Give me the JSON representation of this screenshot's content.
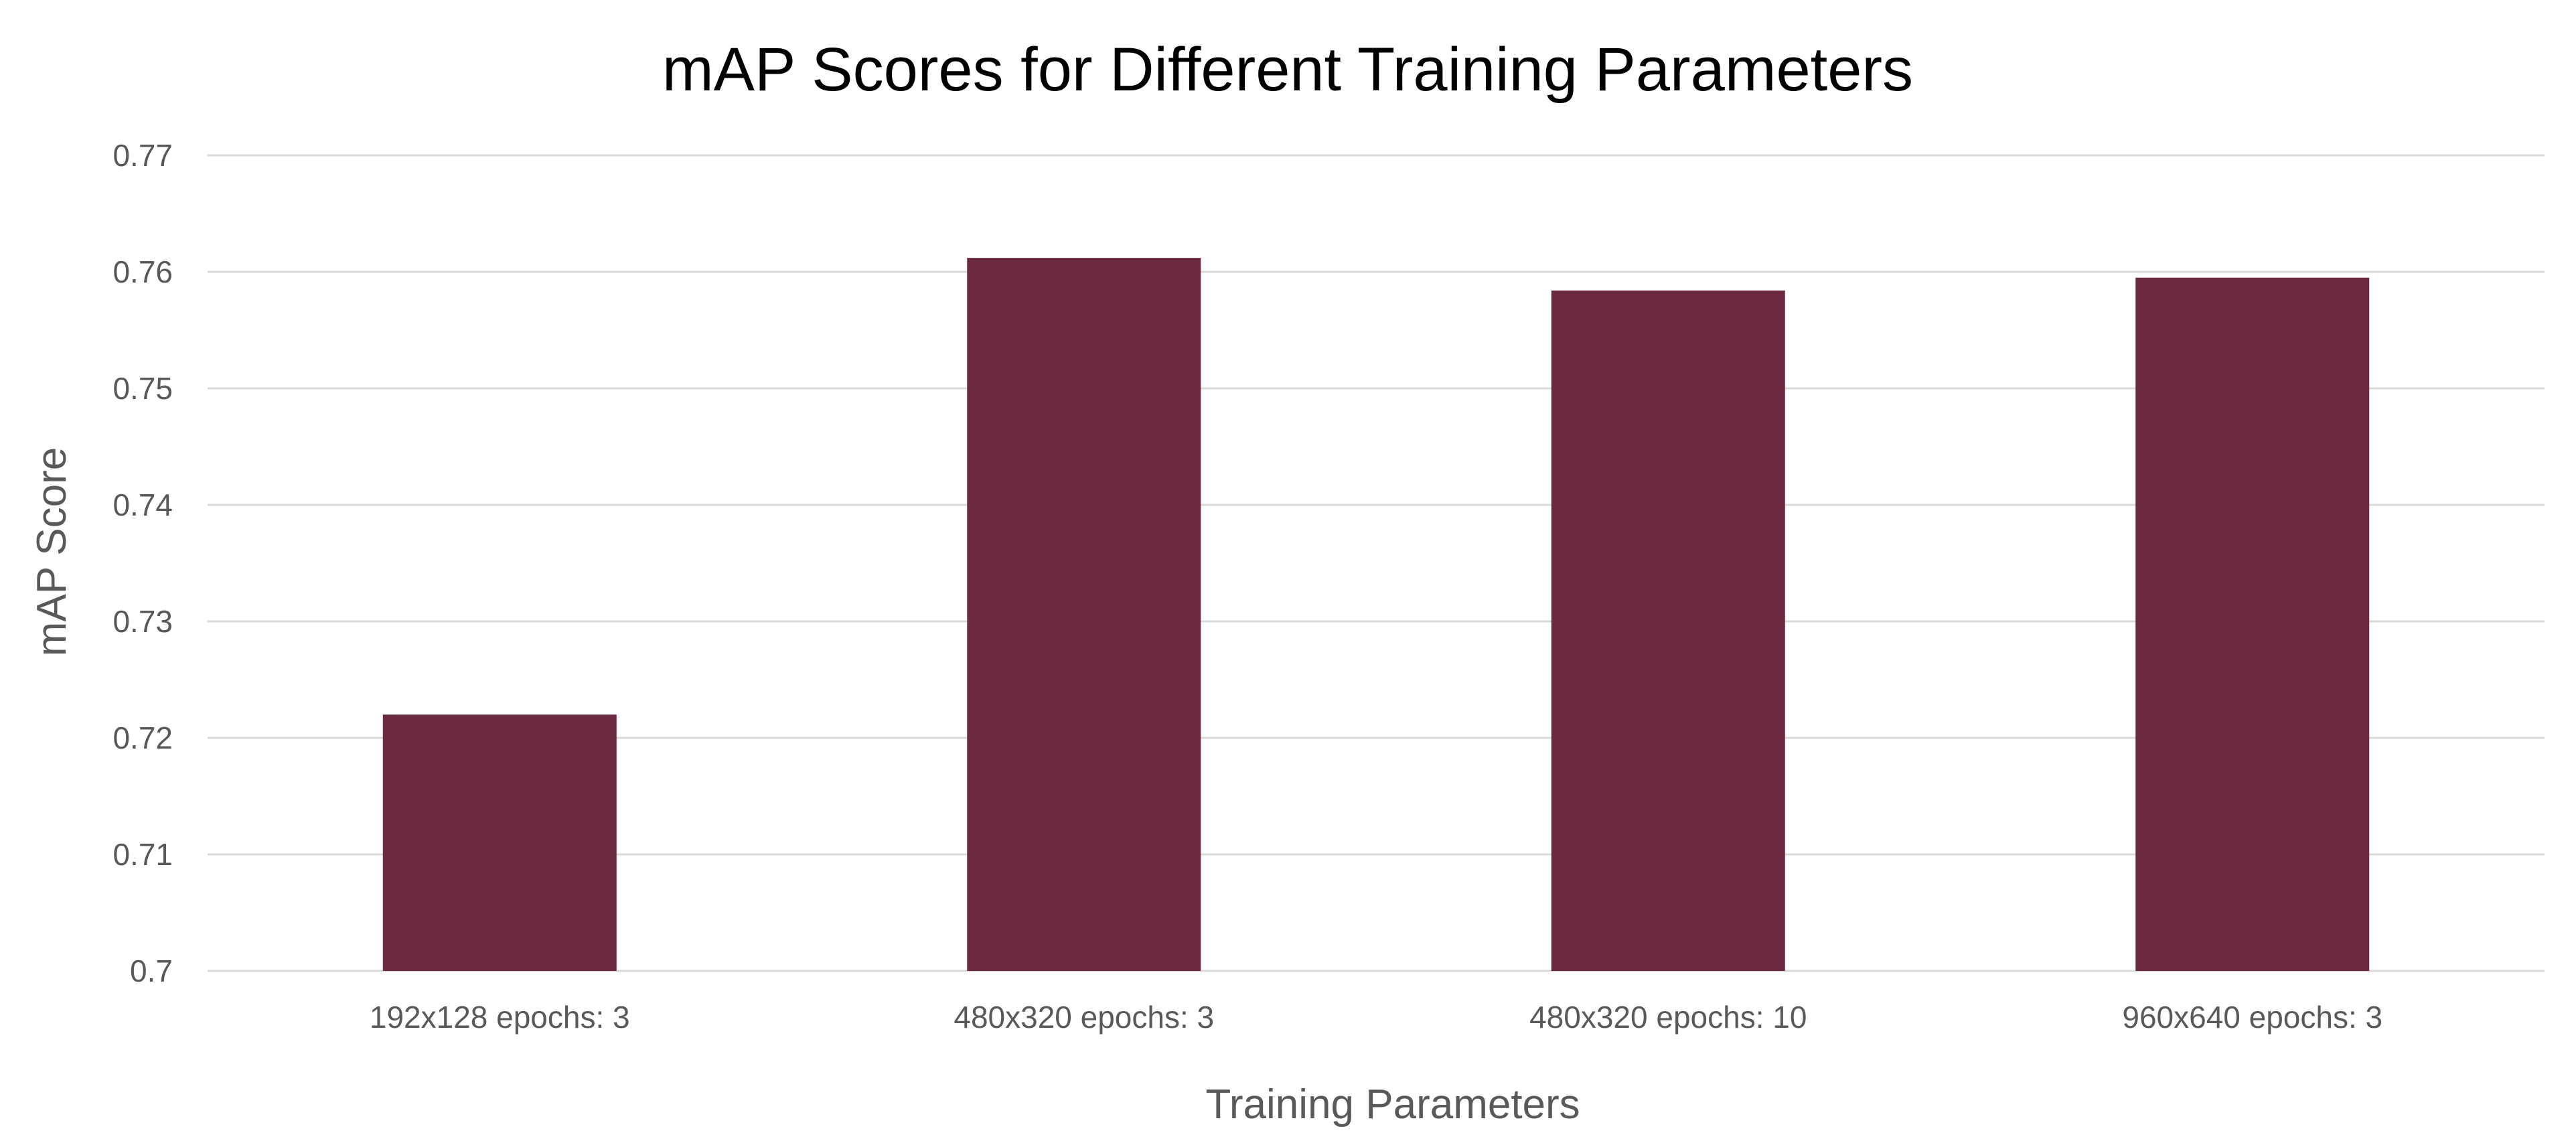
{
  "chart_data": {
    "type": "bar",
    "title": "mAP Scores for Different Training Parameters",
    "xlabel": "Training Parameters",
    "ylabel": "mAP Score",
    "categories": [
      "192x128 epochs: 3",
      "480x320 epochs: 3",
      "480x320 epochs: 10",
      "960x640 epochs: 3"
    ],
    "values": [
      0.722,
      0.7612,
      0.7584,
      0.7595
    ],
    "ylim": [
      0.7,
      0.77
    ],
    "yticks": [
      0.7,
      0.71,
      0.72,
      0.73,
      0.74,
      0.75,
      0.76,
      0.77
    ],
    "ytick_labels": [
      "0.7",
      "0.71",
      "0.72",
      "0.73",
      "0.74",
      "0.75",
      "0.76",
      "0.77"
    ],
    "grid": true,
    "legend": "none",
    "bar_color": "#6b2a3f"
  }
}
